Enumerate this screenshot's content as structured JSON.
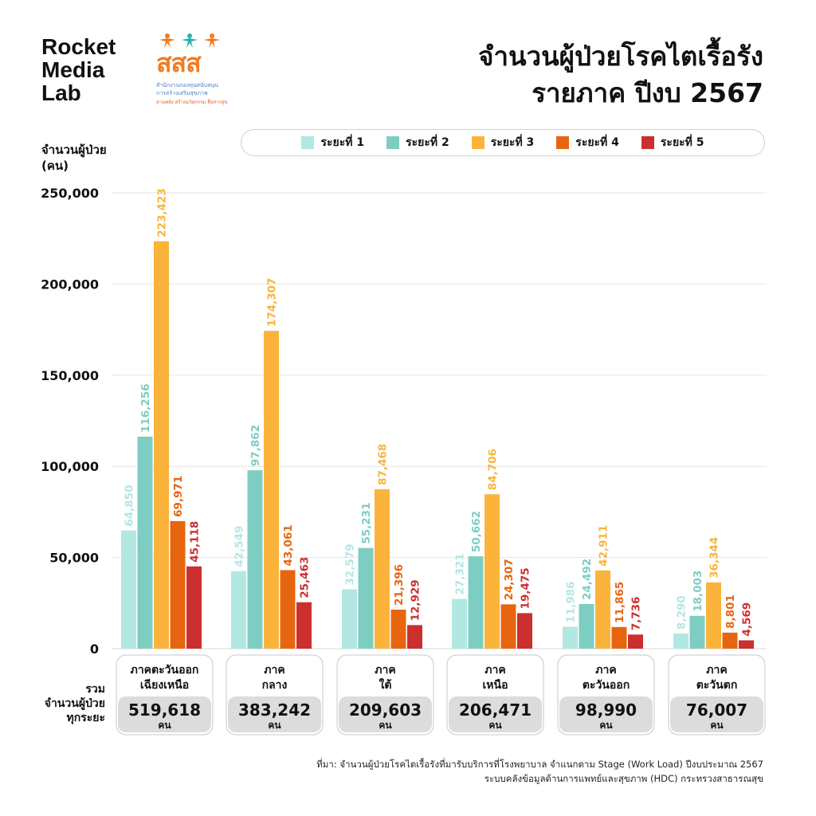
{
  "brand": {
    "line1": "Rocket",
    "line2": "Media",
    "line3": "Lab"
  },
  "logo": {
    "mark": "สสส",
    "sub1": "สำนักงานกองทุนสนับสนุน",
    "sub2": "การสร้างเสริมสุขภาพ",
    "sub3": "สานพลัง สร้างนวัตกรรม สื่อสารสุข"
  },
  "title": {
    "line1": "จำนวนผู้ป่วยโรคไตเรื้อรัง",
    "line2": "รายภาค ปีงบ 2567"
  },
  "ylabel": {
    "line1": "จำนวนผู้ป่วย",
    "line2": "(คน)"
  },
  "total_label": {
    "line1": "รวม",
    "line2": "จำนวนผู้ป่วย",
    "line3": "ทุกระยะ"
  },
  "source": {
    "line1": "ที่มา: จำนวนผู้ป่วยโรคไตเรื้อรังที่มารับบริการที่โรงพยาบาล จำแนกตาม Stage (Work Load) ปีงบประมาณ 2567",
    "line2": "ระบบคลังข้อมูลด้านการแพทย์และสุขภาพ (HDC) กระทรวงสาธารณสุข"
  },
  "chart_data": {
    "type": "bar",
    "title": "จำนวนผู้ป่วยโรคไตเรื้อรัง รายภาค ปีงบ 2567",
    "ylabel": "จำนวนผู้ป่วย (คน)",
    "ylim": [
      0,
      250000
    ],
    "yticks": [
      "0",
      "50,000",
      "100,000",
      "150,000",
      "200,000",
      "250,000"
    ],
    "ytick_values": [
      0,
      50000,
      100000,
      150000,
      200000,
      250000
    ],
    "grid": true,
    "legend_position": "top",
    "categories": [
      [
        "ภาคตะวันออก",
        "เฉียงเหนือ"
      ],
      [
        "ภาค",
        "กลาง"
      ],
      [
        "ภาค",
        "ใต้"
      ],
      [
        "ภาค",
        "เหนือ"
      ],
      [
        "ภาค",
        "ตะวันออก"
      ],
      [
        "ภาค",
        "ตะวันตก"
      ]
    ],
    "series": [
      {
        "name": "ระยะที่ 1",
        "color": "#b2e8e2",
        "values": [
          64850,
          42549,
          32579,
          27321,
          11986,
          8290
        ],
        "labels": [
          "64,850",
          "42,549",
          "32,579",
          "27,321",
          "11,986",
          "8,290"
        ]
      },
      {
        "name": "ระยะที่ 2",
        "color": "#7ecdc3",
        "values": [
          116256,
          97862,
          55231,
          50662,
          24492,
          18003
        ],
        "labels": [
          "116,256",
          "97,862",
          "55,231",
          "50,662",
          "24,492",
          "18,003"
        ]
      },
      {
        "name": "ระยะที่ 3",
        "color": "#fbb33c",
        "values": [
          223423,
          174307,
          87468,
          84706,
          42911,
          36344
        ],
        "labels": [
          "223,423",
          "174,307",
          "87,468",
          "84,706",
          "42,911",
          "36,344"
        ]
      },
      {
        "name": "ระยะที่ 4",
        "color": "#e8650f",
        "values": [
          69971,
          43061,
          21396,
          24307,
          11865,
          8801
        ],
        "labels": [
          "69,971",
          "43,061",
          "21,396",
          "24,307",
          "11,865",
          "8,801"
        ]
      },
      {
        "name": "ระยะที่ 5",
        "color": "#cc2f2f",
        "values": [
          45118,
          25463,
          12929,
          19475,
          7736,
          4569
        ],
        "labels": [
          "45,118",
          "25,463",
          "12,929",
          "19,475",
          "7,736",
          "4,569"
        ]
      }
    ],
    "totals": [
      "519,618",
      "383,242",
      "209,603",
      "206,471",
      "98,990",
      "76,007"
    ],
    "total_unit": "คน"
  }
}
